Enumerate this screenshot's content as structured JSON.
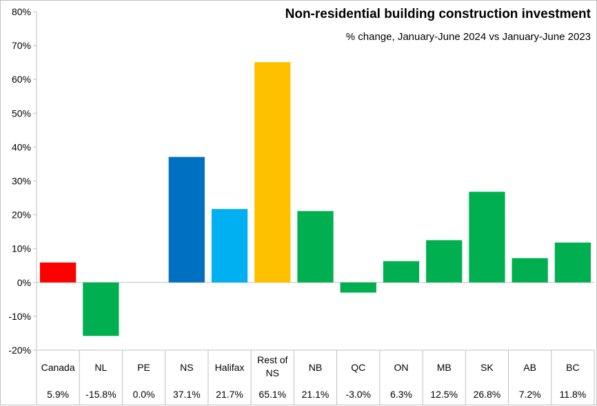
{
  "chart_data": {
    "type": "bar",
    "title": "Non-residential building construction investment",
    "subtitle": "% change, January-June 2024 vs January-June 2023",
    "xlabel": "",
    "ylabel": "",
    "ylim": [
      -20,
      80
    ],
    "ytick_step": 10,
    "ytick_labels": [
      "-20%",
      "-10%",
      "0%",
      "10%",
      "20%",
      "30%",
      "40%",
      "50%",
      "60%",
      "70%",
      "80%"
    ],
    "grid": false,
    "categories": [
      [
        "Canada"
      ],
      [
        "NL"
      ],
      [
        "PE"
      ],
      [
        "NS"
      ],
      [
        "Halifax"
      ],
      [
        "Rest of",
        "NS"
      ],
      [
        "NB"
      ],
      [
        "QC"
      ],
      [
        "ON"
      ],
      [
        "MB"
      ],
      [
        "SK"
      ],
      [
        "AB"
      ],
      [
        "BC"
      ]
    ],
    "values": [
      5.9,
      -15.8,
      0.0,
      37.1,
      21.7,
      65.1,
      21.1,
      -3.0,
      6.3,
      12.5,
      26.8,
      7.2,
      11.8
    ],
    "value_labels": [
      "5.9%",
      "-15.8%",
      "0.0%",
      "37.1%",
      "21.7%",
      "65.1%",
      "21.1%",
      "-3.0%",
      "6.3%",
      "12.5%",
      "26.8%",
      "7.2%",
      "11.8%"
    ],
    "colors": [
      "#ff0000",
      "#00b050",
      "#00b050",
      "#0070c0",
      "#00b0f0",
      "#ffc000",
      "#00b050",
      "#00b050",
      "#00b050",
      "#00b050",
      "#00b050",
      "#00b050",
      "#00b050"
    ]
  }
}
